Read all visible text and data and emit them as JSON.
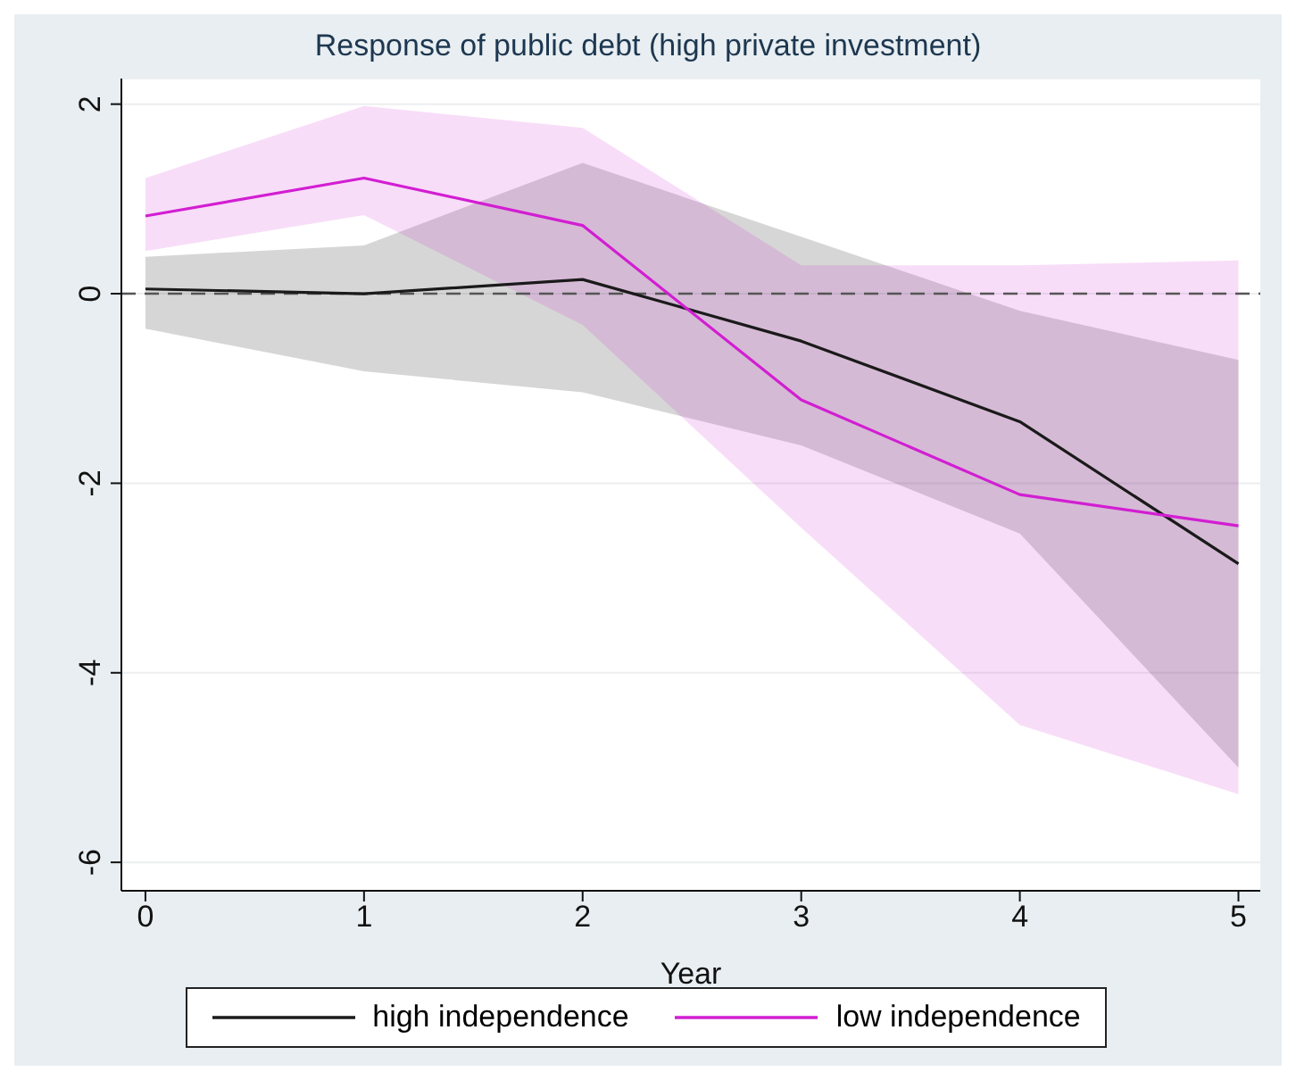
{
  "chart_data": {
    "type": "line",
    "title": "Response of public debt (high private investment)",
    "xlabel": "Year",
    "x": [
      0,
      1,
      2,
      3,
      4,
      5
    ],
    "series": [
      {
        "name": "high independence",
        "color": "#1a1a1a",
        "values": [
          0.05,
          0.0,
          0.15,
          -0.5,
          -1.35,
          -2.85
        ],
        "lower": [
          -0.37,
          -0.82,
          -1.04,
          -1.6,
          -2.53,
          -5.0
        ],
        "upper": [
          0.39,
          0.51,
          1.38,
          0.6,
          -0.18,
          -0.7
        ]
      },
      {
        "name": "low independence",
        "color": "#d21ed2",
        "values": [
          0.82,
          1.22,
          0.72,
          -1.12,
          -2.12,
          -2.45
        ],
        "lower": [
          0.45,
          0.83,
          -0.33,
          -2.47,
          -4.55,
          -5.28
        ],
        "upper": [
          1.22,
          1.98,
          1.75,
          0.3,
          0.3,
          0.35
        ]
      }
    ],
    "xlim": [
      -0.11,
      5.1
    ],
    "ylim": [
      -6.3,
      2.27
    ],
    "xticks": [
      0,
      1,
      2,
      3,
      4,
      5
    ],
    "yticks": [
      -6,
      -4,
      -2,
      0,
      2
    ],
    "grid": "y",
    "legend": "bottom",
    "marker": "none",
    "line_style": "solid",
    "ref_lines": [
      {
        "axis": "y",
        "value": 0,
        "color": "#555555",
        "line_style": "dashed"
      }
    ]
  }
}
